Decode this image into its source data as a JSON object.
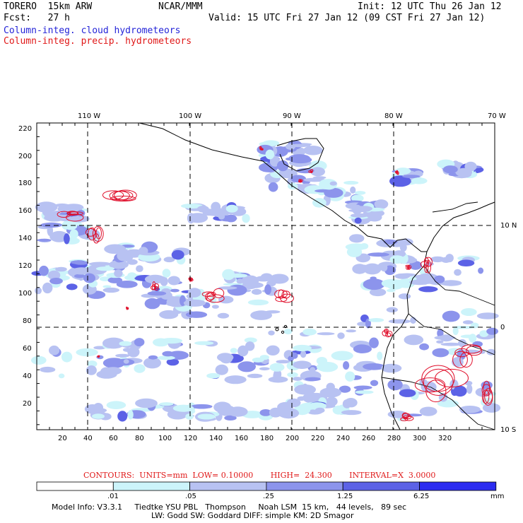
{
  "header": {
    "model": "TORERO  15km ARW",
    "org": "NCAR/MMM",
    "init": "Init: 12 UTC Thu 26 Jan 12",
    "fcst": "Fcst:   27 h",
    "valid": "Valid: 15 UTC Fri 27 Jan 12 (09 CST Fri 27 Jan 12)",
    "field_cloud": "Column-integ. cloud hydrometeors",
    "field_precip": "Column-integ. precip. hydrometeors"
  },
  "map": {
    "top_lon_labels": [
      "110 W",
      "100 W",
      "90 W",
      "80 W",
      "70 W"
    ],
    "right_lat_labels": [
      "10 N",
      "0",
      "10 S"
    ],
    "y_ticks": [
      "220",
      "200",
      "180",
      "160",
      "140",
      "120",
      "100",
      "80",
      "60",
      "40",
      "20"
    ],
    "x_ticks": [
      "20",
      "40",
      "60",
      "80",
      "100",
      "120",
      "140",
      "160",
      "180",
      "200",
      "220",
      "240",
      "260",
      "280",
      "300",
      "320"
    ]
  },
  "contours": {
    "label": "CONTOURS:  UNITS=mm  LOW= 0.10000       HIGH=  24.300       INTERVAL=X  3.0000"
  },
  "colorbar": {
    "labels": [
      ".01",
      ".05",
      ".25",
      "1.25",
      "6.25"
    ],
    "unit": "mm",
    "colors": [
      "#ffffff",
      "#ccf4fa",
      "#b8c2f2",
      "#8c94ec",
      "#5c62e6",
      "#2c2cf0"
    ]
  },
  "footer": {
    "line1": "Model Info: V3.3.1     Tiedtke YSU PBL   Thompson     Noah LSM  15 km,   44 levels,   89 sec",
    "line2": "LW: Godd SW: Goddard DIFF: simple KM: 2D Smagor"
  }
}
